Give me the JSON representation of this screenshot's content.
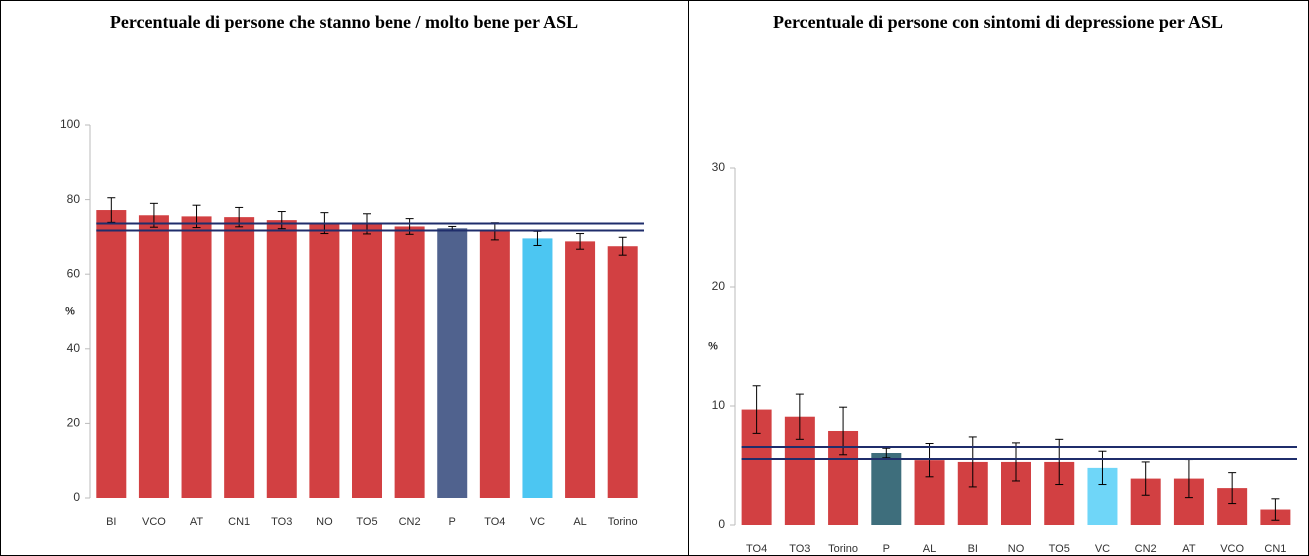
{
  "chart_data": [
    {
      "type": "bar",
      "title": "Percentuale di persone che stanno bene / molto bene per ASL",
      "ylabel": "%",
      "categories": [
        "BI",
        "VCO",
        "AT",
        "CN1",
        "TO3",
        "NO",
        "TO5",
        "CN2",
        "P",
        "TO4",
        "VC",
        "AL",
        "Torino"
      ],
      "values": [
        77.2,
        75.8,
        75.5,
        75.3,
        74.5,
        73.7,
        73.5,
        72.8,
        72.3,
        71.5,
        69.6,
        68.8,
        67.5
      ],
      "errors": [
        3.3,
        3.2,
        3.0,
        2.6,
        2.3,
        2.8,
        2.7,
        2.1,
        0.5,
        2.3,
        1.9,
        2.1,
        2.4
      ],
      "colors": [
        "#d24042",
        "#d24042",
        "#d24042",
        "#d24042",
        "#d24042",
        "#d24042",
        "#d24042",
        "#d24042",
        "#50628e",
        "#d24042",
        "#4cc6f2",
        "#d24042",
        "#d24042"
      ],
      "reference_lines": [
        73.6,
        71.7
      ],
      "reference_color": "#1f2d6b",
      "ylim": [
        0,
        100
      ],
      "yticks": [
        0,
        20,
        40,
        60,
        80,
        100
      ]
    },
    {
      "type": "bar",
      "title": "Percentuale di persone con sintomi di depressione per ASL",
      "ylabel": "%",
      "categories": [
        "TO4",
        "TO3",
        "Torino",
        "P",
        "AL",
        "BI",
        "NO",
        "TO5",
        "VC",
        "CN2",
        "AT",
        "VCO",
        "CN1"
      ],
      "values": [
        9.7,
        9.1,
        7.9,
        6.05,
        5.45,
        5.3,
        5.3,
        5.3,
        4.8,
        3.9,
        3.9,
        3.1,
        1.3
      ],
      "errors": [
        2.0,
        1.9,
        2.0,
        0.4,
        1.4,
        2.1,
        1.6,
        1.9,
        1.4,
        1.4,
        1.6,
        1.3,
        0.9
      ],
      "colors": [
        "#d24042",
        "#d24042",
        "#d24042",
        "#3e6e7c",
        "#d24042",
        "#d24042",
        "#d24042",
        "#d24042",
        "#6fd6f8",
        "#d24042",
        "#d24042",
        "#d24042",
        "#d24042"
      ],
      "reference_lines": [
        6.55,
        5.55
      ],
      "reference_color": "#1f2d6b",
      "ylim": [
        0,
        30
      ],
      "yticks": [
        0,
        10,
        20,
        30
      ]
    }
  ]
}
